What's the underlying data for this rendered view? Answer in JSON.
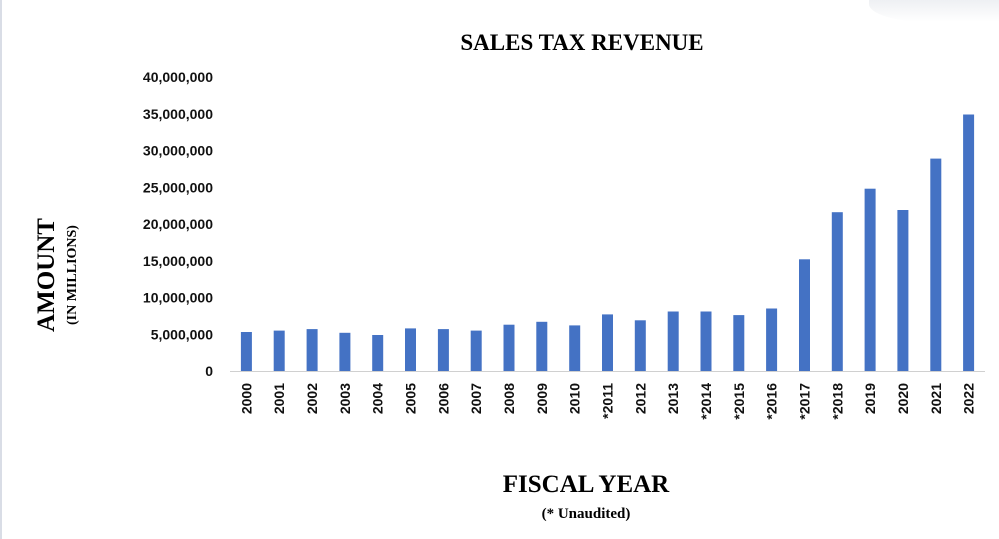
{
  "chart_data": {
    "type": "bar",
    "title": "SALES TAX REVENUE",
    "ylabel": "AMOUNT",
    "ylabel_sub": "(IN MILLIONS)",
    "xlabel": "FISCAL YEAR",
    "xlabel_sub": "(* Unaudited)",
    "ylim": [
      0,
      40000000
    ],
    "yticks": [
      0,
      5000000,
      10000000,
      15000000,
      20000000,
      25000000,
      30000000,
      35000000,
      40000000
    ],
    "ytick_labels": [
      "0",
      "5,000,000",
      "10,000,000",
      "15,000,000",
      "20,000,000",
      "25,000,000",
      "30,000,000",
      "35,000,000",
      "40,000,000"
    ],
    "categories": [
      "2000",
      "2001",
      "2002",
      "2003",
      "2004",
      "2005",
      "2006",
      "2007",
      "2008",
      "2009",
      "2010",
      "*2011",
      "2012",
      "2013",
      "*2014",
      "*2015",
      "*2016",
      "*2017",
      "*2018",
      "2019",
      "2020",
      "2021",
      "2022"
    ],
    "values": [
      5300000,
      5500000,
      5700000,
      5200000,
      4900000,
      5800000,
      5700000,
      5500000,
      6300000,
      6700000,
      6200000,
      7700000,
      6900000,
      8100000,
      8100000,
      7600000,
      8500000,
      15200000,
      21600000,
      24800000,
      21900000,
      28900000,
      34900000
    ],
    "bar_color": "#4472c4",
    "grid": false,
    "legend": "none"
  }
}
